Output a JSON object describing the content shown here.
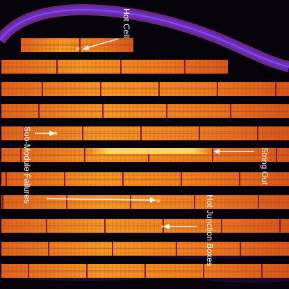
{
  "image": {
    "type": "thermal-infrared aerial photograph",
    "subject": "rows of solar panels"
  },
  "annotations": [
    {
      "id": "hot_cell",
      "text": "Hot Cell"
    },
    {
      "id": "string_out",
      "text": "String Out"
    },
    {
      "id": "sub_module",
      "text": "Sub-Module Failures"
    },
    {
      "id": "hot_jbox",
      "text": "Hot Junction Boxes"
    }
  ],
  "colors": {
    "ground": "#050208",
    "track": "#6a2cc4",
    "track_glow": "#c04ae0",
    "panel_base": "#f08a18",
    "panel_hot": "#ffd24a",
    "panel_edge": "#8a1a3a",
    "label": "#ffffff"
  }
}
